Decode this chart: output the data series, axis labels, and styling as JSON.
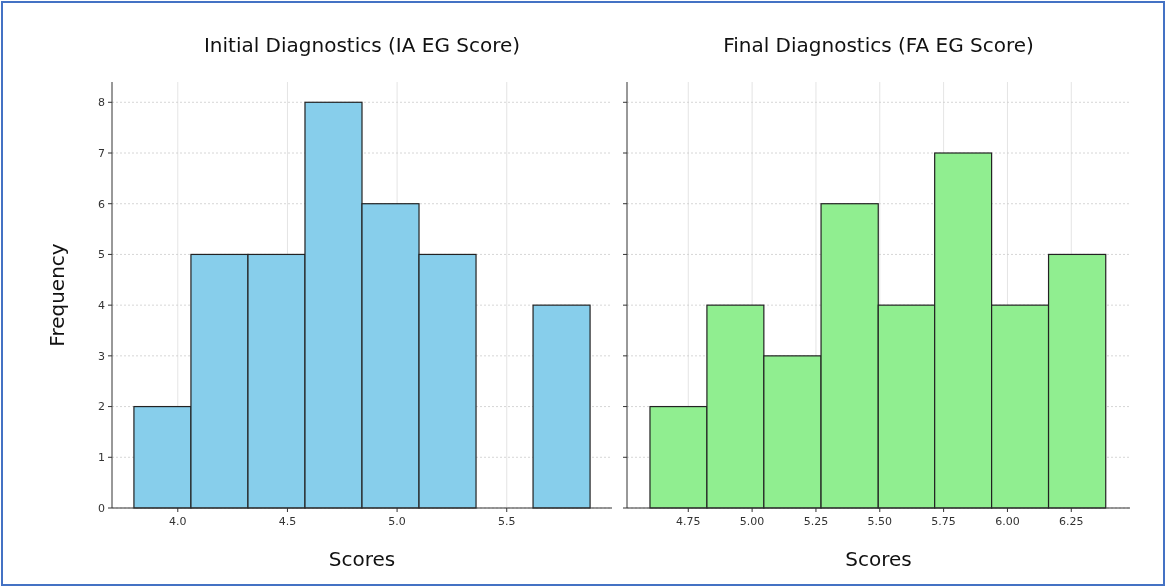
{
  "chart_data": [
    {
      "type": "histogram",
      "title": "Initial Diagnostics (IA EG Score)",
      "xlabel": "Scores",
      "ylabel": "Frequency",
      "bins": [
        3.8,
        4.06,
        4.32,
        4.58,
        4.84,
        5.1,
        5.36,
        5.62,
        5.88
      ],
      "values": [
        2,
        5,
        5,
        8,
        6,
        5,
        0,
        4
      ],
      "color": "#87ceeb",
      "xlim": [
        3.7,
        5.98
      ],
      "xticks": [
        {
          "value": 4.0,
          "label": "4.0"
        },
        {
          "value": 4.5,
          "label": "4.5"
        },
        {
          "value": 5.0,
          "label": "5.0"
        },
        {
          "value": 5.5,
          "label": "5.5"
        }
      ],
      "ylim": [
        0,
        8.4
      ],
      "yticks": [
        0,
        1,
        2,
        3,
        4,
        5,
        6,
        7,
        8
      ],
      "grid": true
    },
    {
      "type": "histogram",
      "title": "Final Diagnostics (FA EG Score)",
      "xlabel": "Scores",
      "bins": [
        4.6,
        4.823,
        5.046,
        5.27,
        5.494,
        5.715,
        5.938,
        6.161,
        6.385
      ],
      "values": [
        2,
        4,
        3,
        6,
        4,
        7,
        4,
        5
      ],
      "color": "#90ee90",
      "xlim": [
        4.51,
        6.48
      ],
      "xticks": [
        {
          "value": 4.75,
          "label": "4.75"
        },
        {
          "value": 5.0,
          "label": "5.00"
        },
        {
          "value": 5.25,
          "label": "5.25"
        },
        {
          "value": 5.5,
          "label": "5.50"
        },
        {
          "value": 5.75,
          "label": "5.75"
        },
        {
          "value": 6.0,
          "label": "6.00"
        },
        {
          "value": 6.25,
          "label": "6.25"
        }
      ],
      "ylim": [
        0,
        8.4
      ],
      "yticks": [
        0,
        1,
        2,
        3,
        4,
        5,
        6,
        7,
        8
      ],
      "grid": true,
      "tick_labels": "x"
    }
  ]
}
